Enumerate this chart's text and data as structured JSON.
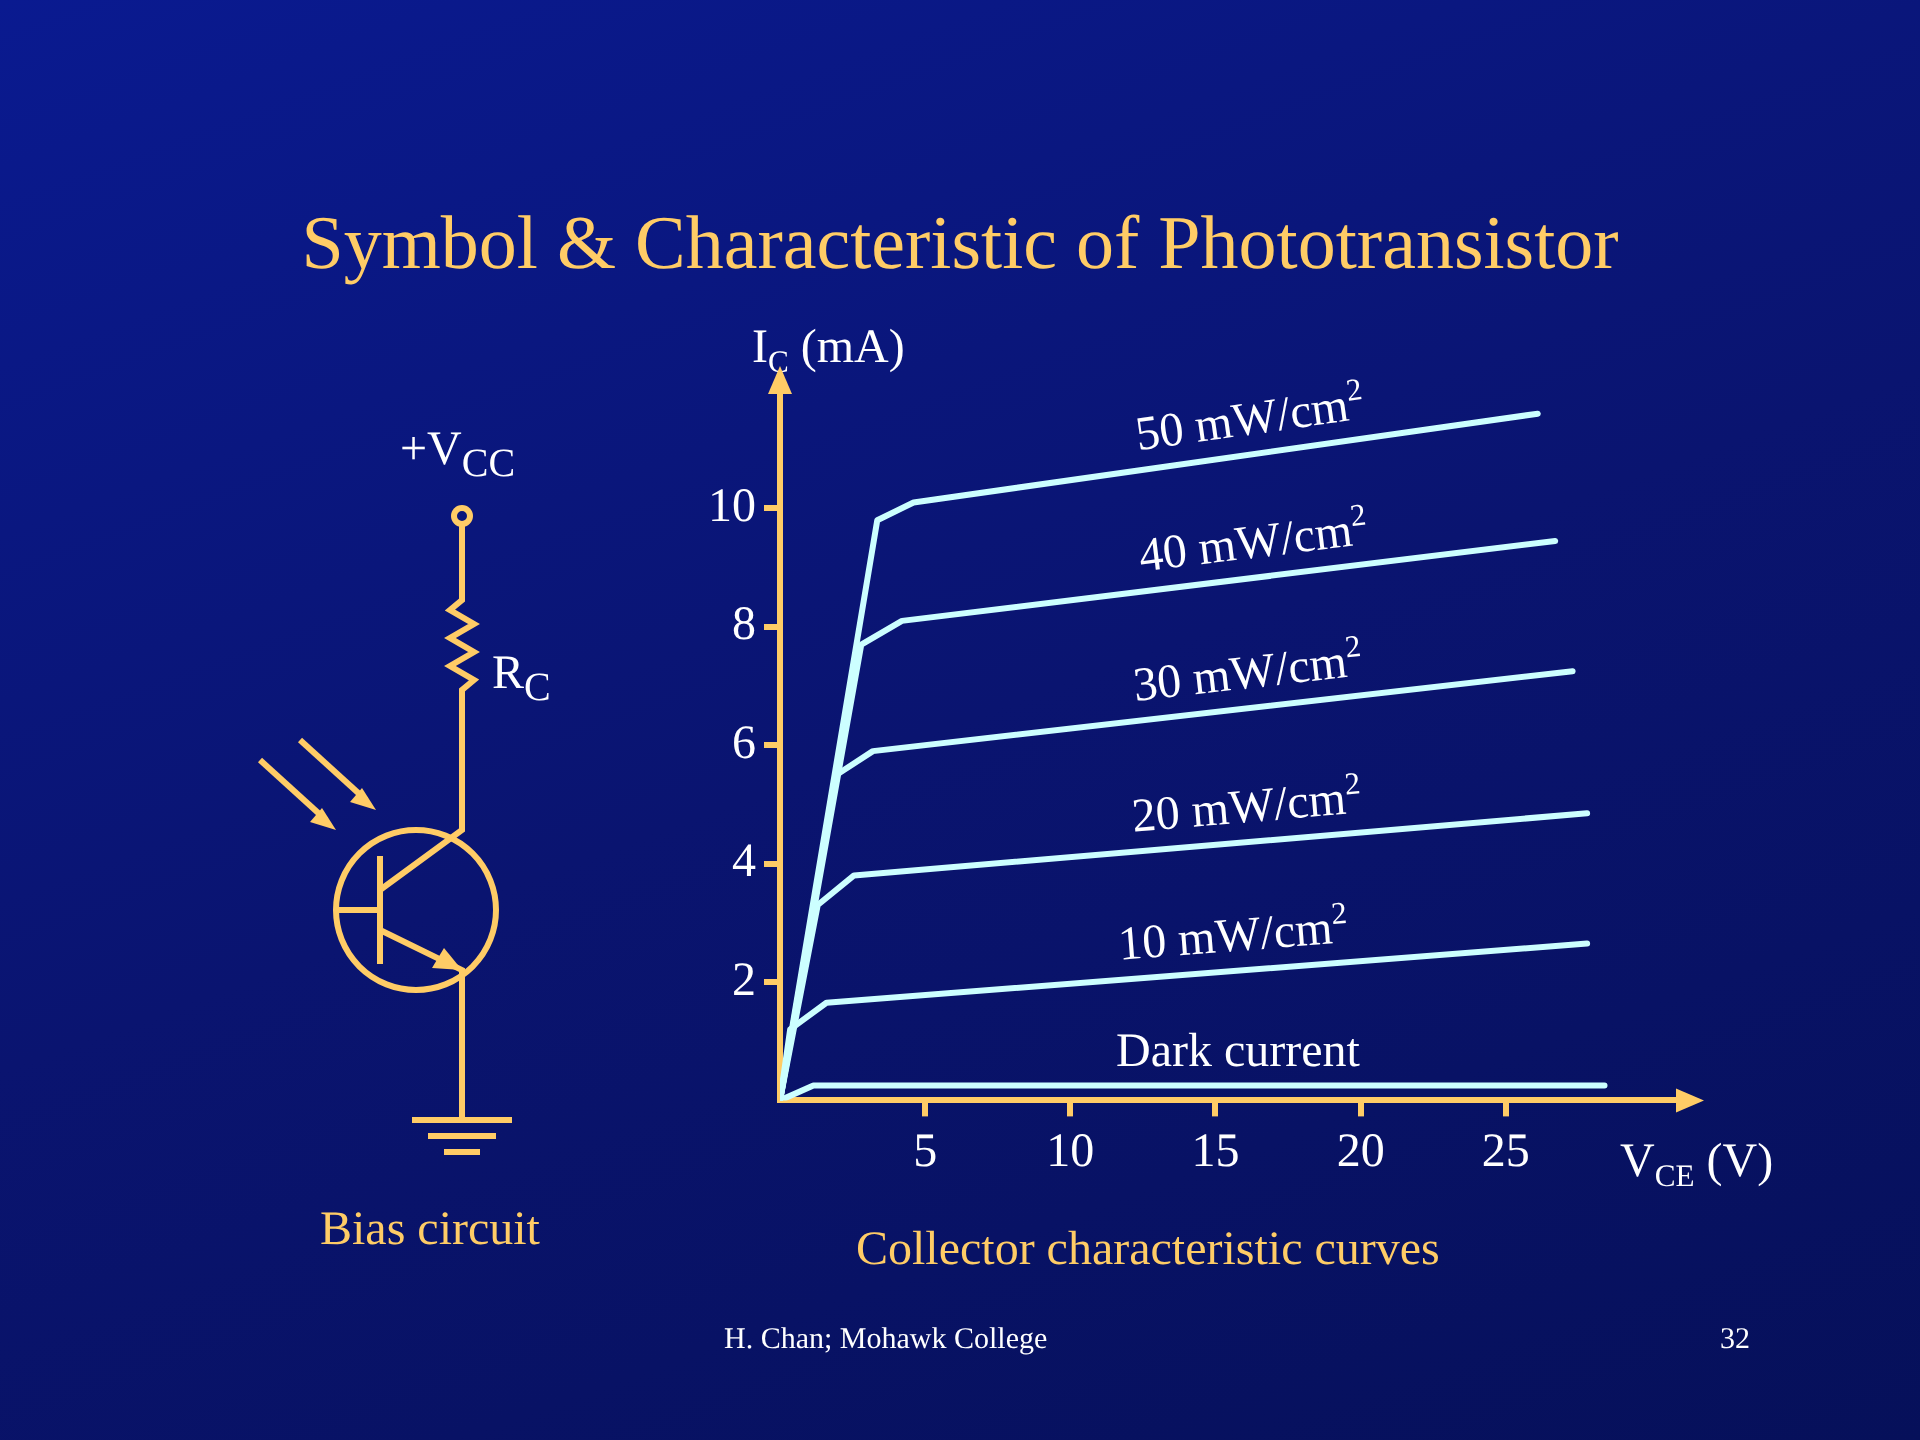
{
  "chart_data": {
    "type": "line",
    "title": "Symbol & Characteristic of Phototransistor",
    "xlabel": "V$_{CE}$ (V)",
    "ylabel": "I$_{C}$ (mA)",
    "annotations": [
      "+V$_{CC}$",
      "R$_{C}$",
      "Bias circuit",
      "Collector characteristic curves",
      "H. Chan; Mohawk College",
      "32"
    ],
    "xlim": [
      0,
      31
    ],
    "ylim": [
      0,
      12
    ],
    "xticks": [
      5,
      10,
      15,
      20,
      25
    ],
    "yticks": [
      2,
      4,
      6,
      8,
      10
    ],
    "grid": false,
    "legend": false,
    "marker": "none",
    "line_style": "solid",
    "series": [
      {
        "name": "50 mW/cm$^{2}$",
        "color": "#ccffff",
        "x": [
          0,
          3.35,
          4.6,
          26.1
        ],
        "values": [
          0,
          9.8,
          10.1,
          11.6
        ]
      },
      {
        "name": "40 mW/cm$^{2}$",
        "color": "#ccffff",
        "x": [
          0,
          2.8,
          4.2,
          26.7
        ],
        "values": [
          0,
          7.7,
          8.1,
          9.45
        ]
      },
      {
        "name": "30 mW/cm$^{2}$",
        "color": "#ccffff",
        "x": [
          0,
          1.95,
          3.2,
          27.3
        ],
        "values": [
          0,
          5.5,
          5.9,
          7.25
        ]
      },
      {
        "name": "20 mW/cm$^{2}$",
        "color": "#ccffff",
        "x": [
          0,
          1.3,
          2.55,
          27.8
        ],
        "values": [
          0,
          3.3,
          3.8,
          4.85
        ]
      },
      {
        "name": "10 mW/cm$^{2}$",
        "color": "#ccffff",
        "x": [
          0,
          0.35,
          1.6,
          27.8
        ],
        "values": [
          0,
          1.2,
          1.65,
          2.65
        ]
      },
      {
        "name": "Dark current",
        "color": "#ccffff",
        "x": [
          0,
          1.15,
          28.4
        ],
        "values": [
          0,
          0.25,
          0.25
        ]
      }
    ]
  }
}
